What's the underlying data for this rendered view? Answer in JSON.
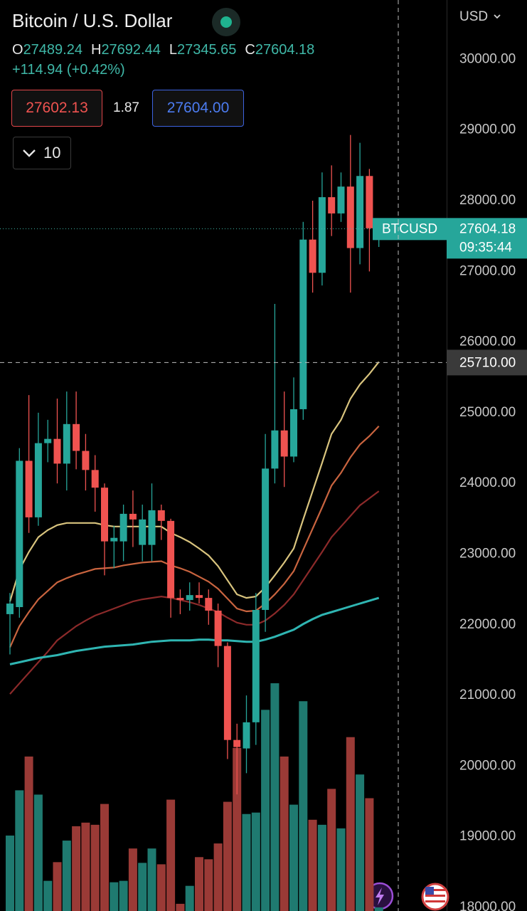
{
  "header": {
    "title": "Bitcoin / U.S. Dollar",
    "ohlc": [
      {
        "label": "O",
        "value": "27489.24"
      },
      {
        "label": "H",
        "value": "27692.44"
      },
      {
        "label": "L",
        "value": "27345.65"
      },
      {
        "label": "C",
        "value": "27604.18"
      }
    ],
    "change": "+114.94 (+0.42%)",
    "bid": "27602.13",
    "spread": "1.87",
    "ask": "27604.00",
    "indicator_count": "10"
  },
  "chart_data": {
    "type": "candlestick",
    "symbol": "BTCUSD",
    "currency": "USD",
    "last_price": "27604.18",
    "countdown": "09:35:44",
    "crosshair": {
      "value": 25710,
      "label": "25710.00"
    },
    "ylim": [
      17950,
      30840
    ],
    "yticks": [
      {
        "value": 18000,
        "label": "18000.00"
      },
      {
        "value": 19000,
        "label": "19000.00"
      },
      {
        "value": 20000,
        "label": "20000.00"
      },
      {
        "value": 21000,
        "label": "21000.00"
      },
      {
        "value": 22000,
        "label": "22000.00"
      },
      {
        "value": 23000,
        "label": "23000.00"
      },
      {
        "value": 24000,
        "label": "24000.00"
      },
      {
        "value": 25000,
        "label": "25000.00"
      },
      {
        "value": 26000,
        "label": "26000.00"
      },
      {
        "value": 27000,
        "label": "27000.00"
      },
      {
        "value": 28000,
        "label": "28000.00"
      },
      {
        "value": 29000,
        "label": "29000.00"
      },
      {
        "value": 30000,
        "label": "30000.00"
      }
    ],
    "up_color": "#26a69a",
    "down_color": "#ef5350",
    "up_volume_color": "#1f7a70",
    "down_volume_color": "#9a3a36",
    "open": [
      22150,
      22250,
      24320,
      23520,
      24570,
      24630,
      24280,
      24840,
      24460,
      24190,
      23940,
      23180,
      23180,
      23570,
      23130,
      23130,
      23620,
      23470,
      22380,
      22350,
      22420,
      22380,
      22200,
      21700,
      20370,
      20250,
      20620,
      22210,
      24210,
      24750,
      24380,
      25050,
      27450,
      26980,
      28050,
      27820,
      28200,
      27330,
      28350,
      27489.24
    ],
    "high": [
      22450,
      24500,
      25250,
      25000,
      24900,
      25200,
      25300,
      25300,
      24700,
      24400,
      24000,
      23400,
      23700,
      23900,
      23700,
      24000,
      23700,
      23500,
      22500,
      22600,
      22600,
      22500,
      22300,
      21750,
      20600,
      21000,
      22450,
      24700,
      26540,
      25300,
      25500,
      27700,
      28000,
      28400,
      28500,
      28400,
      28930,
      28820,
      28450,
      27692.44
    ],
    "low": [
      21580,
      22100,
      23300,
      23400,
      24300,
      24000,
      23900,
      24200,
      23900,
      23600,
      22700,
      22800,
      22900,
      23100,
      22900,
      22900,
      23200,
      22100,
      22150,
      22200,
      22300,
      22000,
      21400,
      20100,
      19600,
      19900,
      20300,
      21900,
      24000,
      23950,
      24300,
      24900,
      26700,
      26800,
      27500,
      27700,
      26700,
      27100,
      27000,
      27345.65
    ],
    "close": [
      22300,
      24320,
      23520,
      24570,
      24630,
      24280,
      24840,
      24460,
      24190,
      23940,
      23180,
      23230,
      23570,
      23490,
      23490,
      23620,
      23470,
      22380,
      22350,
      22420,
      22380,
      22200,
      21700,
      20370,
      20270,
      20620,
      22210,
      24210,
      24750,
      24380,
      25050,
      27450,
      26980,
      28050,
      27820,
      28200,
      27330,
      28350,
      27610,
      27604.18
    ],
    "volume": [
      105,
      168,
      215,
      162,
      42,
      68,
      98,
      118,
      123,
      120,
      149,
      40,
      42,
      87,
      67,
      87,
      65,
      155,
      10,
      35,
      75,
      72,
      94,
      152,
      227,
      135,
      137,
      280,
      317,
      215,
      148,
      292,
      127,
      120,
      170,
      115,
      242,
      190,
      157,
      5
    ],
    "series": [
      {
        "color": "#d9c47e",
        "values": [
          22330,
          22780,
          23030,
          23240,
          23340,
          23410,
          23440,
          23440,
          23440,
          23440,
          23410,
          23390,
          23390,
          23390,
          23390,
          23390,
          23390,
          23300,
          23240,
          23170,
          23080,
          22980,
          22830,
          22630,
          22430,
          22380,
          22400,
          22530,
          22700,
          22880,
          23080,
          23490,
          23890,
          24290,
          24700,
          24900,
          25200,
          25400,
          25550,
          25720
        ]
      },
      {
        "color": "#c9643f",
        "values": [
          21680,
          21980,
          22180,
          22360,
          22480,
          22600,
          22660,
          22710,
          22750,
          22790,
          22800,
          22810,
          22840,
          22860,
          22880,
          22890,
          22900,
          22840,
          22800,
          22750,
          22680,
          22610,
          22510,
          22370,
          22230,
          22190,
          22200,
          22300,
          22430,
          22580,
          22760,
          23060,
          23360,
          23660,
          23970,
          24150,
          24370,
          24550,
          24670,
          24810
        ]
      },
      {
        "color": "#8c2a2a",
        "values": [
          21020,
          21170,
          21320,
          21470,
          21620,
          21780,
          21880,
          21980,
          22060,
          22130,
          22180,
          22230,
          22280,
          22330,
          22360,
          22380,
          22400,
          22380,
          22350,
          22320,
          22280,
          22230,
          22180,
          22100,
          22030,
          22000,
          22000,
          22060,
          22160,
          22280,
          22430,
          22630,
          22830,
          23030,
          23240,
          23390,
          23540,
          23690,
          23790,
          23890
        ]
      },
      {
        "color": "#2fb5b2",
        "values": [
          21440,
          21470,
          21500,
          21530,
          21550,
          21570,
          21600,
          21630,
          21650,
          21670,
          21690,
          21700,
          21710,
          21720,
          21740,
          21760,
          21770,
          21780,
          21780,
          21780,
          21790,
          21790,
          21780,
          21780,
          21770,
          21760,
          21760,
          21790,
          21830,
          21880,
          21930,
          22010,
          22080,
          22140,
          22180,
          22220,
          22260,
          22300,
          22340,
          22380
        ]
      }
    ]
  }
}
